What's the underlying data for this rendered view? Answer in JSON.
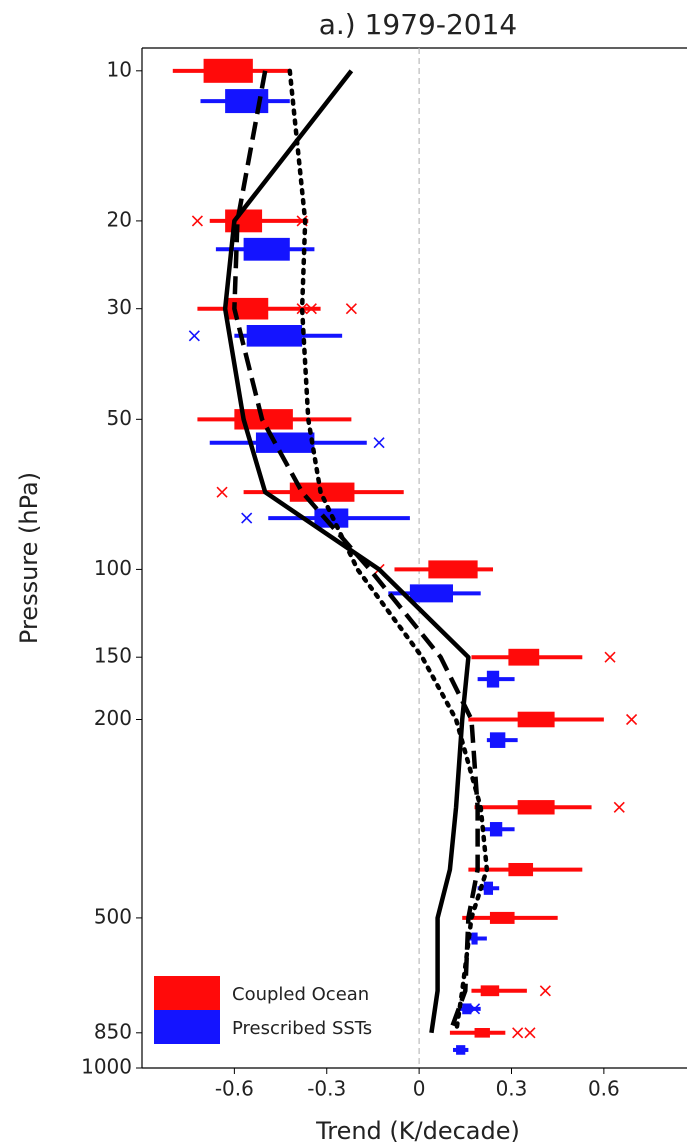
{
  "chart_data": {
    "type": "box",
    "title": "a.) 1979-2014",
    "x_label": "Trend (K/decade)",
    "y_label": "Pressure (hPa)",
    "xlim": [
      -0.9,
      0.87
    ],
    "xticks": [
      -0.6,
      -0.3,
      0,
      0.3,
      0.6
    ],
    "ylim": [
      1000,
      9
    ],
    "yticks": [
      10,
      20,
      30,
      50,
      100,
      150,
      200,
      500,
      850,
      1000
    ],
    "y_log": true,
    "zero_line": true,
    "legend": "lower left",
    "series": [
      {
        "name": "Coupled Ocean",
        "color": "#ff0a0a",
        "pressure": [
          10,
          20,
          30,
          50,
          70,
          100,
          150,
          200,
          300,
          400,
          500,
          700,
          850
        ],
        "whisker_low": [
          -0.8,
          -0.68,
          -0.72,
          -0.72,
          -0.57,
          -0.08,
          0.17,
          0.16,
          0.18,
          0.16,
          0.14,
          0.17,
          0.1
        ],
        "box_low": [
          -0.7,
          -0.63,
          -0.63,
          -0.6,
          -0.42,
          0.03,
          0.29,
          0.32,
          0.32,
          0.29,
          0.23,
          0.2,
          0.18
        ],
        "box_high": [
          -0.54,
          -0.51,
          -0.49,
          -0.41,
          -0.21,
          0.19,
          0.39,
          0.44,
          0.44,
          0.37,
          0.31,
          0.26,
          0.23
        ],
        "whisker_high": [
          -0.42,
          -0.36,
          -0.32,
          -0.22,
          -0.05,
          0.24,
          0.53,
          0.6,
          0.56,
          0.53,
          0.45,
          0.35,
          0.28
        ],
        "outlier_pressure": [
          20,
          20,
          30,
          30,
          30,
          70,
          100,
          150,
          200,
          300,
          700,
          850,
          850
        ],
        "outliers": [
          -0.72,
          -0.38,
          -0.38,
          -0.35,
          -0.22,
          -0.64,
          -0.13,
          0.62,
          0.69,
          0.65,
          0.41,
          0.32,
          0.36
        ]
      },
      {
        "name": "Prescribed SSTs",
        "color": "#1414ff",
        "pressure": [
          11.5,
          22.8,
          34,
          55.7,
          78.9,
          111.7,
          166,
          220,
          332,
          436,
          550,
          761,
          920
        ],
        "whisker_low": [
          -0.71,
          -0.66,
          -0.6,
          -0.68,
          -0.49,
          -0.1,
          0.19,
          0.22,
          0.21,
          0.19,
          0.16,
          0.13,
          0.11
        ],
        "box_low": [
          -0.63,
          -0.57,
          -0.56,
          -0.53,
          -0.34,
          -0.03,
          0.22,
          0.23,
          0.23,
          0.21,
          0.17,
          0.14,
          0.12
        ],
        "box_high": [
          -0.49,
          -0.42,
          -0.38,
          -0.34,
          -0.23,
          0.11,
          0.26,
          0.28,
          0.27,
          0.24,
          0.19,
          0.17,
          0.15
        ],
        "whisker_high": [
          -0.42,
          -0.34,
          -0.25,
          -0.17,
          -0.03,
          0.2,
          0.31,
          0.32,
          0.31,
          0.26,
          0.22,
          0.2,
          0.16
        ],
        "outlier_pressure": [
          34,
          55.7,
          78.9,
          761
        ],
        "outliers": [
          -0.73,
          -0.13,
          -0.56,
          0.18
        ]
      }
    ],
    "line_pressure": [
      10,
      20,
      30,
      50,
      70,
      100,
      150,
      200,
      300,
      400,
      500,
      700,
      850
    ],
    "lines": [
      {
        "style": "solid",
        "color": "#000000",
        "values": [
          -0.22,
          -0.6,
          -0.63,
          -0.57,
          -0.5,
          -0.13,
          0.16,
          0.14,
          0.12,
          0.1,
          0.06,
          0.06,
          0.04
        ]
      },
      {
        "style": "dashed",
        "color": "#000000",
        "values": [
          -0.5,
          -0.59,
          -0.6,
          -0.51,
          -0.38,
          -0.16,
          0.07,
          0.17,
          0.19,
          0.19,
          0.16,
          0.15,
          0.1
        ]
      },
      {
        "style": "dotted",
        "color": "#000000",
        "values": [
          -0.42,
          -0.37,
          -0.38,
          -0.36,
          -0.32,
          -0.2,
          0.01,
          0.12,
          0.2,
          0.22,
          0.17,
          0.14,
          0.12
        ]
      }
    ]
  }
}
